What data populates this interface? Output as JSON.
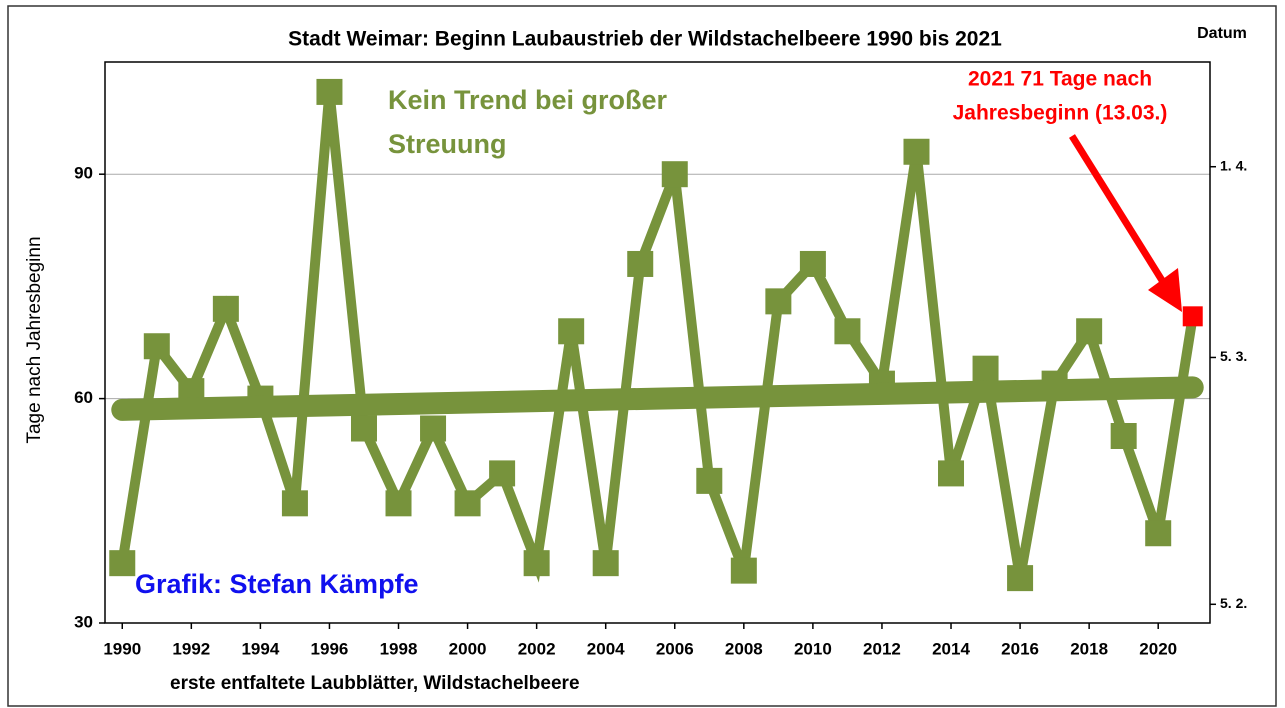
{
  "chart_data": {
    "type": "line",
    "title": "Stadt Weimar: Beginn Laubaustrieb der Wildstachelbeere 1990 bis 2021",
    "ylabel": "Tage nach Jahresbeginn",
    "xlabel": "erste entfaltete Laubblätter, Wildstachelbeere",
    "y2label": "Datum",
    "annotations": {
      "trend_note": [
        "Kein Trend bei großer",
        "Streuung"
      ],
      "last_note": [
        "2021 71 Tage nach",
        "Jahresbeginn (13.03.)"
      ],
      "credit": "Grafik: Stefan Kämpfe"
    },
    "x": [
      1990,
      1991,
      1992,
      1993,
      1994,
      1995,
      1996,
      1997,
      1998,
      1999,
      2000,
      2001,
      2002,
      2003,
      2004,
      2005,
      2006,
      2007,
      2008,
      2009,
      2010,
      2011,
      2012,
      2013,
      2014,
      2015,
      2016,
      2017,
      2018,
      2019,
      2020,
      2021
    ],
    "series": [
      {
        "color": "#77933c",
        "last_point_color": "#ff0000",
        "values": [
          38,
          67,
          61,
          72,
          60,
          46,
          101,
          56,
          46,
          56,
          46,
          50,
          38,
          69,
          38,
          78,
          90,
          49,
          37,
          73,
          78,
          69,
          62,
          93,
          50,
          64,
          36,
          62,
          69,
          55,
          42,
          71
        ]
      }
    ],
    "trend": {
      "color": "#77933c",
      "x": [
        1990,
        2021
      ],
      "values": [
        58.5,
        61.5
      ]
    },
    "xlim": [
      1989.5,
      2021.5
    ],
    "xticks": [
      1990,
      1992,
      1994,
      1996,
      1998,
      2000,
      2002,
      2004,
      2006,
      2008,
      2010,
      2012,
      2014,
      2016,
      2018,
      2020
    ],
    "ylim": [
      30,
      105
    ],
    "yticks": [
      30,
      60,
      90
    ],
    "y2lim": [
      30,
      105
    ],
    "y2ticks": [
      {
        "value": 91,
        "label": "1. 4."
      },
      {
        "value": 65.5,
        "label": "5. 3."
      },
      {
        "value": 32.5,
        "label": "5. 2."
      }
    ],
    "grid": true
  }
}
